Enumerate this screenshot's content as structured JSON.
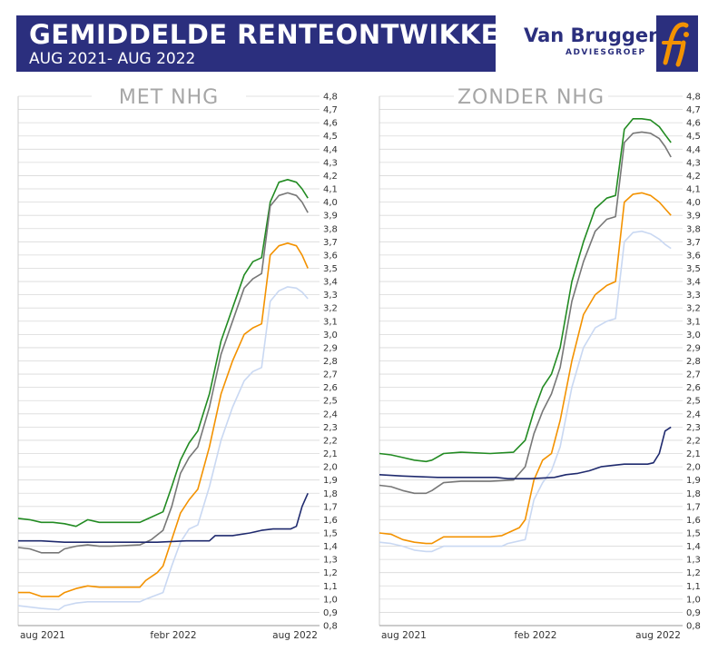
{
  "header": {
    "title": "GEMIDDELDE RENTEONTWIKKELING",
    "subtitle": "AUG 2021- AUG 2022"
  },
  "logo": {
    "name": "Van Bruggen",
    "tagline": "ADVIESGROEP",
    "mark": "fi",
    "brand_color": "#2b2f7e",
    "mark_color": "#f39200"
  },
  "chart_data": [
    {
      "type": "line",
      "title": "MET NHG",
      "x_tick_labels": [
        "aug 2021",
        "febr 2022",
        "aug 2022"
      ],
      "x_range": [
        0,
        52
      ],
      "ylim": [
        0.8,
        4.8
      ],
      "y_tick_labels": [
        "4,8",
        "4,7",
        "4,6",
        "4,5",
        "4,4",
        "4,3",
        "4,2",
        "4,1",
        "4,0",
        "3,9",
        "3,8",
        "3,7",
        "3,6",
        "3,5",
        "3,4",
        "3,3",
        "3,2",
        "3,1",
        "3,0",
        "2,9",
        "2,8",
        "2,7",
        "2,6",
        "2,5",
        "2,4",
        "2,3",
        "2,2",
        "2,1",
        "2,0",
        "1,9",
        "1,8",
        "1,7",
        "1,6",
        "1,5",
        "1,4",
        "1,3",
        "1,2",
        "1,1",
        "1,0",
        "0,9",
        "0,8"
      ],
      "grid": true,
      "series": [
        {
          "color": "#228b22",
          "points": [
            [
              0,
              1.61
            ],
            [
              2,
              1.6
            ],
            [
              4,
              1.58
            ],
            [
              6,
              1.58
            ],
            [
              8,
              1.57
            ],
            [
              10,
              1.55
            ],
            [
              12,
              1.6
            ],
            [
              14,
              1.58
            ],
            [
              18,
              1.58
            ],
            [
              21,
              1.58
            ],
            [
              22,
              1.6
            ],
            [
              25,
              1.66
            ],
            [
              26.5,
              1.85
            ],
            [
              28,
              2.05
            ],
            [
              29.5,
              2.18
            ],
            [
              31,
              2.27
            ],
            [
              33,
              2.55
            ],
            [
              35,
              2.95
            ],
            [
              37,
              3.2
            ],
            [
              39,
              3.45
            ],
            [
              40.5,
              3.55
            ],
            [
              42,
              3.58
            ],
            [
              43.5,
              4.0
            ],
            [
              45,
              4.15
            ],
            [
              46.5,
              4.17
            ],
            [
              48,
              4.15
            ],
            [
              49,
              4.1
            ],
            [
              50,
              4.03
            ]
          ]
        },
        {
          "color": "#777777",
          "points": [
            [
              0,
              1.39
            ],
            [
              2,
              1.38
            ],
            [
              4,
              1.35
            ],
            [
              7,
              1.35
            ],
            [
              8,
              1.38
            ],
            [
              10,
              1.4
            ],
            [
              12,
              1.41
            ],
            [
              14,
              1.4
            ],
            [
              16,
              1.4
            ],
            [
              21,
              1.41
            ],
            [
              23,
              1.45
            ],
            [
              25,
              1.52
            ],
            [
              26.5,
              1.7
            ],
            [
              28,
              1.95
            ],
            [
              29.5,
              2.07
            ],
            [
              31,
              2.15
            ],
            [
              33,
              2.45
            ],
            [
              35,
              2.85
            ],
            [
              37,
              3.1
            ],
            [
              39,
              3.35
            ],
            [
              40.5,
              3.42
            ],
            [
              42,
              3.46
            ],
            [
              43.5,
              3.97
            ],
            [
              45,
              4.05
            ],
            [
              46.5,
              4.07
            ],
            [
              48,
              4.05
            ],
            [
              49,
              4.0
            ],
            [
              50,
              3.92
            ]
          ]
        },
        {
          "color": "#f39200",
          "points": [
            [
              0,
              1.05
            ],
            [
              2,
              1.05
            ],
            [
              4,
              1.02
            ],
            [
              7,
              1.02
            ],
            [
              8,
              1.05
            ],
            [
              10,
              1.08
            ],
            [
              12,
              1.1
            ],
            [
              14,
              1.09
            ],
            [
              21,
              1.09
            ],
            [
              22,
              1.14
            ],
            [
              24,
              1.2
            ],
            [
              25,
              1.25
            ],
            [
              26.5,
              1.45
            ],
            [
              28,
              1.65
            ],
            [
              29.5,
              1.75
            ],
            [
              31,
              1.83
            ],
            [
              33,
              2.15
            ],
            [
              35,
              2.55
            ],
            [
              37,
              2.8
            ],
            [
              39,
              3.0
            ],
            [
              40.5,
              3.05
            ],
            [
              42,
              3.08
            ],
            [
              43.5,
              3.6
            ],
            [
              45,
              3.67
            ],
            [
              46.5,
              3.69
            ],
            [
              48,
              3.67
            ],
            [
              49,
              3.6
            ],
            [
              50,
              3.5
            ]
          ]
        },
        {
          "color": "#c9d8f2",
          "points": [
            [
              0,
              0.95
            ],
            [
              2,
              0.94
            ],
            [
              4,
              0.93
            ],
            [
              7,
              0.92
            ],
            [
              8,
              0.95
            ],
            [
              10,
              0.97
            ],
            [
              12,
              0.98
            ],
            [
              14,
              0.98
            ],
            [
              21,
              0.98
            ],
            [
              22,
              1.0
            ],
            [
              25,
              1.05
            ],
            [
              26.5,
              1.25
            ],
            [
              28,
              1.43
            ],
            [
              29.5,
              1.53
            ],
            [
              31,
              1.56
            ],
            [
              33,
              1.85
            ],
            [
              35,
              2.2
            ],
            [
              37,
              2.45
            ],
            [
              39,
              2.65
            ],
            [
              40.5,
              2.72
            ],
            [
              42,
              2.75
            ],
            [
              43.5,
              3.25
            ],
            [
              45,
              3.33
            ],
            [
              46.5,
              3.36
            ],
            [
              48,
              3.35
            ],
            [
              49,
              3.32
            ],
            [
              50,
              3.27
            ]
          ]
        },
        {
          "color": "#1f2a6e",
          "points": [
            [
              0,
              1.44
            ],
            [
              4,
              1.44
            ],
            [
              8,
              1.43
            ],
            [
              14,
              1.43
            ],
            [
              20,
              1.43
            ],
            [
              24,
              1.43
            ],
            [
              29,
              1.44
            ],
            [
              33,
              1.44
            ],
            [
              34,
              1.48
            ],
            [
              37,
              1.48
            ],
            [
              40,
              1.5
            ],
            [
              42,
              1.52
            ],
            [
              44,
              1.53
            ],
            [
              47,
              1.53
            ],
            [
              48,
              1.55
            ],
            [
              49,
              1.7
            ],
            [
              50,
              1.8
            ]
          ]
        }
      ]
    },
    {
      "type": "line",
      "title": "ZONDER NHG",
      "x_tick_labels": [
        "aug 2021",
        "feb 2022",
        "aug 2022"
      ],
      "x_range": [
        0,
        52
      ],
      "ylim": [
        0.8,
        4.8
      ],
      "y_tick_labels": [
        "4,8",
        "4,7",
        "4,6",
        "4,5",
        "4,4",
        "4,3",
        "4,2",
        "4,1",
        "4,0",
        "3,9",
        "3,8",
        "3,7",
        "3,6",
        "3,5",
        "3,4",
        "3,3",
        "3,2",
        "3,1",
        "3,0",
        "2,9",
        "2,8",
        "2,7",
        "2,6",
        "2,5",
        "2,4",
        "2,3",
        "2,2",
        "2,1",
        "2,0",
        "1,9",
        "1,8",
        "1,7",
        "1,6",
        "1,5",
        "1,4",
        "1,3",
        "1,2",
        "1,1",
        "1,0",
        "0,9",
        "0,8"
      ],
      "grid": true,
      "series": [
        {
          "color": "#228b22",
          "points": [
            [
              0,
              2.1
            ],
            [
              2,
              2.09
            ],
            [
              4,
              2.07
            ],
            [
              6,
              2.05
            ],
            [
              8,
              2.04
            ],
            [
              9,
              2.05
            ],
            [
              11,
              2.1
            ],
            [
              14,
              2.11
            ],
            [
              19,
              2.1
            ],
            [
              23,
              2.11
            ],
            [
              25,
              2.2
            ],
            [
              26.5,
              2.42
            ],
            [
              28,
              2.6
            ],
            [
              29.5,
              2.7
            ],
            [
              31,
              2.9
            ],
            [
              33,
              3.4
            ],
            [
              35,
              3.7
            ],
            [
              37,
              3.95
            ],
            [
              39,
              4.03
            ],
            [
              40.5,
              4.05
            ],
            [
              42,
              4.55
            ],
            [
              43.5,
              4.63
            ],
            [
              45,
              4.63
            ],
            [
              46.5,
              4.62
            ],
            [
              48,
              4.57
            ],
            [
              49,
              4.51
            ],
            [
              50,
              4.45
            ]
          ]
        },
        {
          "color": "#777777",
          "points": [
            [
              0,
              1.86
            ],
            [
              2,
              1.85
            ],
            [
              4,
              1.82
            ],
            [
              6,
              1.8
            ],
            [
              8,
              1.8
            ],
            [
              9,
              1.82
            ],
            [
              11,
              1.88
            ],
            [
              14,
              1.89
            ],
            [
              19,
              1.89
            ],
            [
              23,
              1.9
            ],
            [
              25,
              2.0
            ],
            [
              26.5,
              2.25
            ],
            [
              28,
              2.42
            ],
            [
              29.5,
              2.55
            ],
            [
              31,
              2.75
            ],
            [
              33,
              3.25
            ],
            [
              35,
              3.55
            ],
            [
              37,
              3.78
            ],
            [
              39,
              3.87
            ],
            [
              40.5,
              3.89
            ],
            [
              42,
              4.45
            ],
            [
              43.5,
              4.52
            ],
            [
              45,
              4.53
            ],
            [
              46.5,
              4.52
            ],
            [
              48,
              4.48
            ],
            [
              49,
              4.42
            ],
            [
              50,
              4.34
            ]
          ]
        },
        {
          "color": "#f39200",
          "points": [
            [
              0,
              1.5
            ],
            [
              2,
              1.49
            ],
            [
              4,
              1.45
            ],
            [
              6,
              1.43
            ],
            [
              8,
              1.42
            ],
            [
              9,
              1.42
            ],
            [
              11,
              1.47
            ],
            [
              14,
              1.47
            ],
            [
              19,
              1.47
            ],
            [
              21,
              1.48
            ],
            [
              22,
              1.5
            ],
            [
              24,
              1.54
            ],
            [
              25,
              1.6
            ],
            [
              26.5,
              1.9
            ],
            [
              28,
              2.05
            ],
            [
              29.5,
              2.1
            ],
            [
              31,
              2.35
            ],
            [
              33,
              2.8
            ],
            [
              35,
              3.15
            ],
            [
              37,
              3.3
            ],
            [
              39,
              3.37
            ],
            [
              40.5,
              3.4
            ],
            [
              42,
              4.0
            ],
            [
              43.5,
              4.06
            ],
            [
              45,
              4.07
            ],
            [
              46.5,
              4.05
            ],
            [
              48,
              4.0
            ],
            [
              49,
              3.95
            ],
            [
              50,
              3.9
            ]
          ]
        },
        {
          "color": "#c9d8f2",
          "points": [
            [
              0,
              1.43
            ],
            [
              2,
              1.42
            ],
            [
              4,
              1.4
            ],
            [
              6,
              1.37
            ],
            [
              8,
              1.36
            ],
            [
              9,
              1.36
            ],
            [
              11,
              1.4
            ],
            [
              14,
              1.4
            ],
            [
              21,
              1.4
            ],
            [
              22,
              1.42
            ],
            [
              25,
              1.45
            ],
            [
              26.5,
              1.75
            ],
            [
              28,
              1.88
            ],
            [
              29.5,
              1.97
            ],
            [
              31,
              2.15
            ],
            [
              33,
              2.6
            ],
            [
              35,
              2.9
            ],
            [
              37,
              3.05
            ],
            [
              39,
              3.1
            ],
            [
              40.5,
              3.12
            ],
            [
              42,
              3.7
            ],
            [
              43.5,
              3.77
            ],
            [
              45,
              3.78
            ],
            [
              46.5,
              3.76
            ],
            [
              48,
              3.72
            ],
            [
              49,
              3.68
            ],
            [
              50,
              3.65
            ]
          ]
        },
        {
          "color": "#1f2a6e",
          "points": [
            [
              0,
              1.94
            ],
            [
              4,
              1.93
            ],
            [
              10,
              1.92
            ],
            [
              16,
              1.92
            ],
            [
              20,
              1.92
            ],
            [
              22,
              1.91
            ],
            [
              26,
              1.91
            ],
            [
              30,
              1.92
            ],
            [
              32,
              1.94
            ],
            [
              34,
              1.95
            ],
            [
              36,
              1.97
            ],
            [
              38,
              2.0
            ],
            [
              40,
              2.01
            ],
            [
              42,
              2.02
            ],
            [
              46,
              2.02
            ],
            [
              47,
              2.03
            ],
            [
              48,
              2.1
            ],
            [
              49,
              2.27
            ],
            [
              50,
              2.3
            ]
          ]
        }
      ]
    }
  ]
}
